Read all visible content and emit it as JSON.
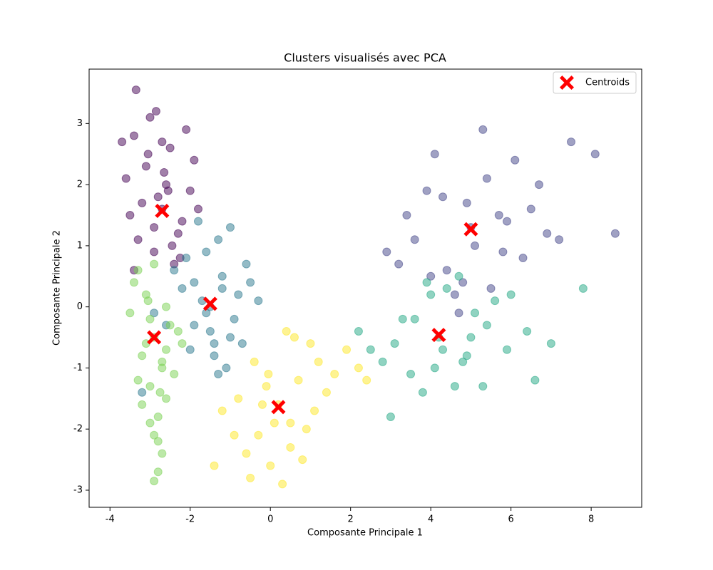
{
  "chart_data": {
    "type": "scatter",
    "title": "Clusters visualisés avec PCA",
    "x_label": "Composante Principale 1",
    "y_label": "Composante Principale 2",
    "xlim": [
      -4.52,
      9.26
    ],
    "ylim": [
      -3.28,
      3.89
    ],
    "xticks": [
      -4,
      -2,
      0,
      2,
      4,
      6,
      8
    ],
    "yticks": [
      -3,
      -2,
      -1,
      0,
      1,
      2,
      3
    ],
    "grid": false,
    "legend": "upper right",
    "alpha": 0.5,
    "series": [
      {
        "color": "#440154",
        "x": [
          -2.7,
          -3.1,
          -2.3,
          -3.4,
          -2.0,
          -2.9,
          -2.5,
          -3.6,
          -2.2,
          -3.0,
          -2.8,
          -1.9,
          -3.3,
          -2.6,
          -2.4,
          -3.5,
          -2.1,
          -3.2,
          -2.7,
          -2.9,
          -3.35,
          -2.45,
          -1.8,
          -3.05,
          -2.65,
          -3.7,
          -2.25,
          -3.4,
          -2.85,
          -2.55
        ],
        "y": [
          1.6,
          2.3,
          1.2,
          2.8,
          1.9,
          0.9,
          2.6,
          2.1,
          1.4,
          3.1,
          1.8,
          2.4,
          1.1,
          2.0,
          0.7,
          1.5,
          2.9,
          1.7,
          2.7,
          1.3,
          3.55,
          1.0,
          1.6,
          2.5,
          2.2,
          2.7,
          0.8,
          0.6,
          3.2,
          1.9
        ]
      },
      {
        "color": "#414487",
        "x": [
          5.0,
          4.3,
          5.8,
          3.6,
          6.5,
          4.8,
          5.4,
          3.2,
          6.9,
          4.1,
          5.1,
          6.1,
          4.6,
          5.7,
          3.9,
          7.5,
          4.4,
          5.3,
          2.9,
          6.3,
          4.9,
          5.5,
          8.1,
          3.4,
          6.7,
          4.7,
          5.9,
          4.0,
          7.2,
          8.6
        ],
        "y": [
          1.3,
          1.8,
          0.9,
          1.1,
          1.6,
          0.4,
          2.1,
          0.7,
          1.2,
          2.5,
          1.0,
          2.4,
          0.2,
          1.5,
          1.9,
          2.7,
          0.6,
          2.9,
          0.9,
          0.8,
          1.7,
          0.3,
          2.5,
          1.5,
          2.0,
          -0.1,
          1.4,
          0.5,
          1.1,
          1.2
        ]
      },
      {
        "color": "#2a788e",
        "x": [
          -1.5,
          -1.2,
          -1.9,
          -0.8,
          -1.6,
          -2.2,
          -1.0,
          -1.4,
          -2.0,
          -0.6,
          -1.7,
          -1.3,
          -2.4,
          -0.9,
          -1.1,
          -1.8,
          -0.5,
          -1.5,
          -2.1,
          -1.0,
          -1.3,
          -0.7,
          -1.9,
          -1.6,
          -2.9,
          -3.2,
          -0.3,
          -1.2,
          -1.4,
          -2.6
        ],
        "y": [
          0.0,
          0.5,
          -0.3,
          0.2,
          0.9,
          0.3,
          -0.5,
          -0.8,
          -0.7,
          0.7,
          0.1,
          1.1,
          0.6,
          -0.2,
          -1.0,
          1.4,
          0.4,
          -0.4,
          0.8,
          1.3,
          -1.1,
          -0.6,
          0.4,
          -0.1,
          -0.1,
          -1.4,
          0.1,
          0.3,
          -0.6,
          -0.3
        ]
      },
      {
        "color": "#22a884",
        "x": [
          4.2,
          3.6,
          4.8,
          3.1,
          5.4,
          4.0,
          4.6,
          2.8,
          5.9,
          3.8,
          4.4,
          5.1,
          3.3,
          4.9,
          6.4,
          2.5,
          4.1,
          5.6,
          3.5,
          4.7,
          7.0,
          2.2,
          5.3,
          3.9,
          6.0,
          4.3,
          7.8,
          3.0,
          5.0,
          6.6
        ],
        "y": [
          -0.5,
          -0.2,
          -0.9,
          -0.6,
          -0.3,
          0.2,
          -1.3,
          -0.9,
          -0.7,
          -1.4,
          0.3,
          -0.1,
          -0.2,
          -0.8,
          -0.4,
          -0.7,
          -1.0,
          0.1,
          -1.1,
          0.5,
          -0.6,
          -0.4,
          -1.3,
          0.4,
          0.2,
          -0.7,
          0.3,
          -1.8,
          -0.5,
          -1.2
        ]
      },
      {
        "color": "#7ad151",
        "x": [
          -2.9,
          -3.1,
          -2.7,
          -3.3,
          -2.6,
          -3.0,
          -2.8,
          -3.2,
          -2.5,
          -2.9,
          -3.4,
          -2.7,
          -3.0,
          -2.6,
          -3.1,
          -2.8,
          -2.4,
          -3.2,
          -2.9,
          -2.7,
          -3.5,
          -2.3,
          -2.8,
          -3.0,
          -2.6,
          -2.9,
          -3.3,
          -2.2,
          -2.75,
          -3.05
        ],
        "y": [
          -0.5,
          0.2,
          -1.0,
          0.6,
          -1.5,
          -0.2,
          -1.8,
          -0.8,
          -0.3,
          -2.1,
          0.4,
          -2.4,
          -1.3,
          0.0,
          -0.6,
          -2.7,
          -1.1,
          -1.6,
          0.7,
          -0.9,
          -0.1,
          -0.4,
          -2.2,
          -1.9,
          -0.7,
          -2.85,
          -1.2,
          -0.6,
          -1.4,
          0.1
        ]
      },
      {
        "color": "#fde725",
        "x": [
          0.2,
          -0.3,
          0.7,
          -0.8,
          1.2,
          0.0,
          0.5,
          -0.6,
          1.6,
          -0.1,
          0.9,
          -1.2,
          1.9,
          0.3,
          -0.4,
          1.4,
          0.6,
          -0.9,
          2.2,
          0.1,
          0.8,
          -0.2,
          1.1,
          -1.4,
          0.4,
          2.4,
          -0.5,
          1.0,
          0.5,
          -0.05
        ],
        "y": [
          -1.6,
          -2.1,
          -1.2,
          -1.5,
          -0.9,
          -2.6,
          -1.9,
          -2.4,
          -1.1,
          -1.3,
          -2.0,
          -1.7,
          -0.7,
          -2.9,
          -0.9,
          -1.4,
          -0.5,
          -2.1,
          -1.0,
          -1.9,
          -2.5,
          -1.6,
          -1.7,
          -2.6,
          -0.4,
          -1.2,
          -2.8,
          -0.6,
          -2.3,
          -1.1
        ]
      },
      {
        "name": "Centroids",
        "color": "#ff0000",
        "marker": "X",
        "x": [
          -2.7,
          5.0,
          -1.5,
          4.2,
          -2.9,
          0.2
        ],
        "y": [
          1.57,
          1.27,
          0.05,
          -0.46,
          -0.5,
          -1.64
        ]
      }
    ]
  }
}
